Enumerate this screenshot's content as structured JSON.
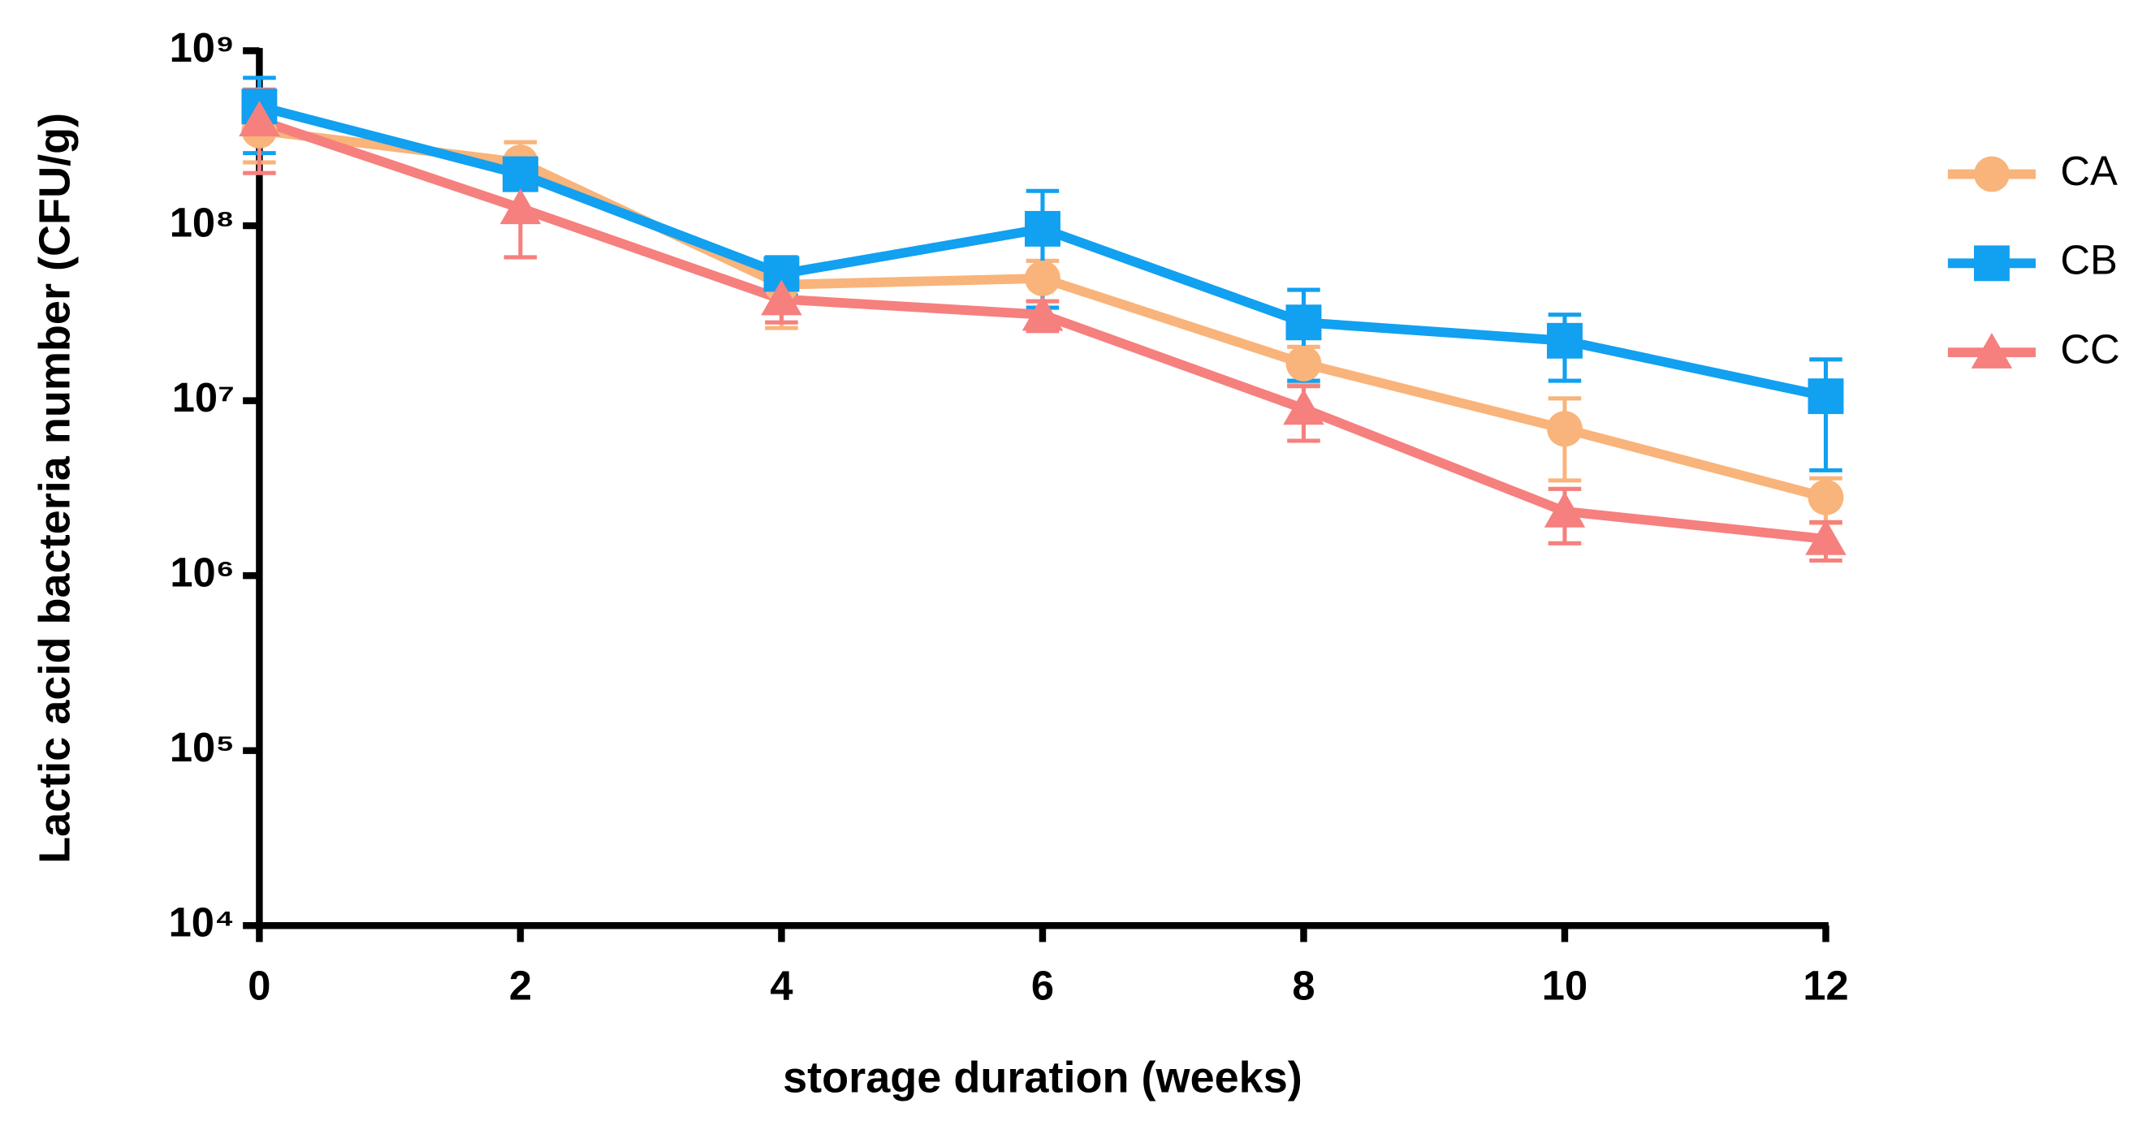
{
  "chart_data": {
    "type": "line",
    "y_label": "Lactic acid bacteria number (CFU/g)",
    "x_label": "storage duration (weeks)",
    "x": [
      0,
      2,
      4,
      6,
      8,
      10,
      12
    ],
    "xlim": [
      0,
      12
    ],
    "xticks": [
      0,
      2,
      4,
      6,
      8,
      10,
      12
    ],
    "ylim": [
      10000,
      1000000000
    ],
    "log_y": true,
    "yticks": [
      {
        "value": 10000,
        "label": "10⁴"
      },
      {
        "value": 100000,
        "label": "10⁵"
      },
      {
        "value": 1000000,
        "label": "10⁶"
      },
      {
        "value": 10000000,
        "label": "10⁷"
      },
      {
        "value": 100000000,
        "label": "10⁸"
      },
      {
        "value": 1000000000,
        "label": "10⁹"
      }
    ],
    "legend": "right",
    "series": [
      {
        "name": "CA",
        "color": "#f8b47a",
        "marker": "circle",
        "values": [
          350000000,
          230000000,
          46000000,
          50000000,
          16300000,
          6900000,
          2800000
        ],
        "errors": [
          120000000,
          70000000,
          20000000,
          13000000,
          4000000,
          3400000,
          800000
        ]
      },
      {
        "name": "CB",
        "color": "#12a0f0",
        "marker": "square",
        "values": [
          480000000,
          197000000,
          53000000,
          96000000,
          28000000,
          22000000,
          10600000
        ],
        "errors": [
          220000000,
          30000000,
          13000000,
          62000000,
          15000000,
          9000000,
          6600000
        ]
      },
      {
        "name": "CC",
        "color": "#f5807e",
        "marker": "triangle",
        "values": [
          400000000,
          126000000,
          38000000,
          31000000,
          9000000,
          2330000,
          1620000
        ],
        "errors": [
          200000000,
          60000000,
          10000000,
          6000000,
          3100000,
          800000,
          400000
        ]
      }
    ]
  }
}
